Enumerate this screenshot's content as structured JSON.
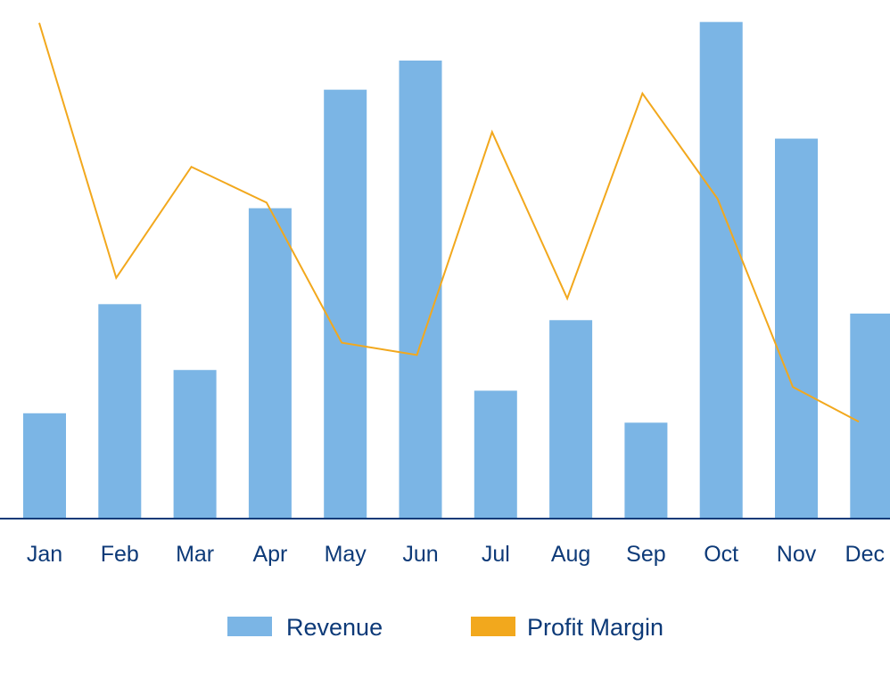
{
  "chart_data": {
    "type": "bar",
    "title": "",
    "xlabel": "",
    "ylabel": "",
    "categories": [
      "Jan",
      "Feb",
      "Mar",
      "Apr",
      "May",
      "Jun",
      "Jul",
      "Aug",
      "Sep",
      "Oct",
      "Nov",
      "Dec"
    ],
    "series": [
      {
        "name": "Revenue",
        "type": "bar",
        "color": "#7bb5e5",
        "values": [
          112,
          228,
          158,
          330,
          456,
          487,
          136,
          211,
          102,
          528,
          404,
          218
        ]
      },
      {
        "name": "Profit Margin",
        "type": "line",
        "color": "#f2a81d",
        "values": [
          527,
          256,
          374,
          336,
          187,
          174,
          411,
          234,
          452,
          340,
          140,
          103
        ]
      }
    ],
    "ylim": [
      0,
      540
    ],
    "grid": false,
    "legend_position": "bottom-center",
    "axis_color": "#0d3a78"
  }
}
